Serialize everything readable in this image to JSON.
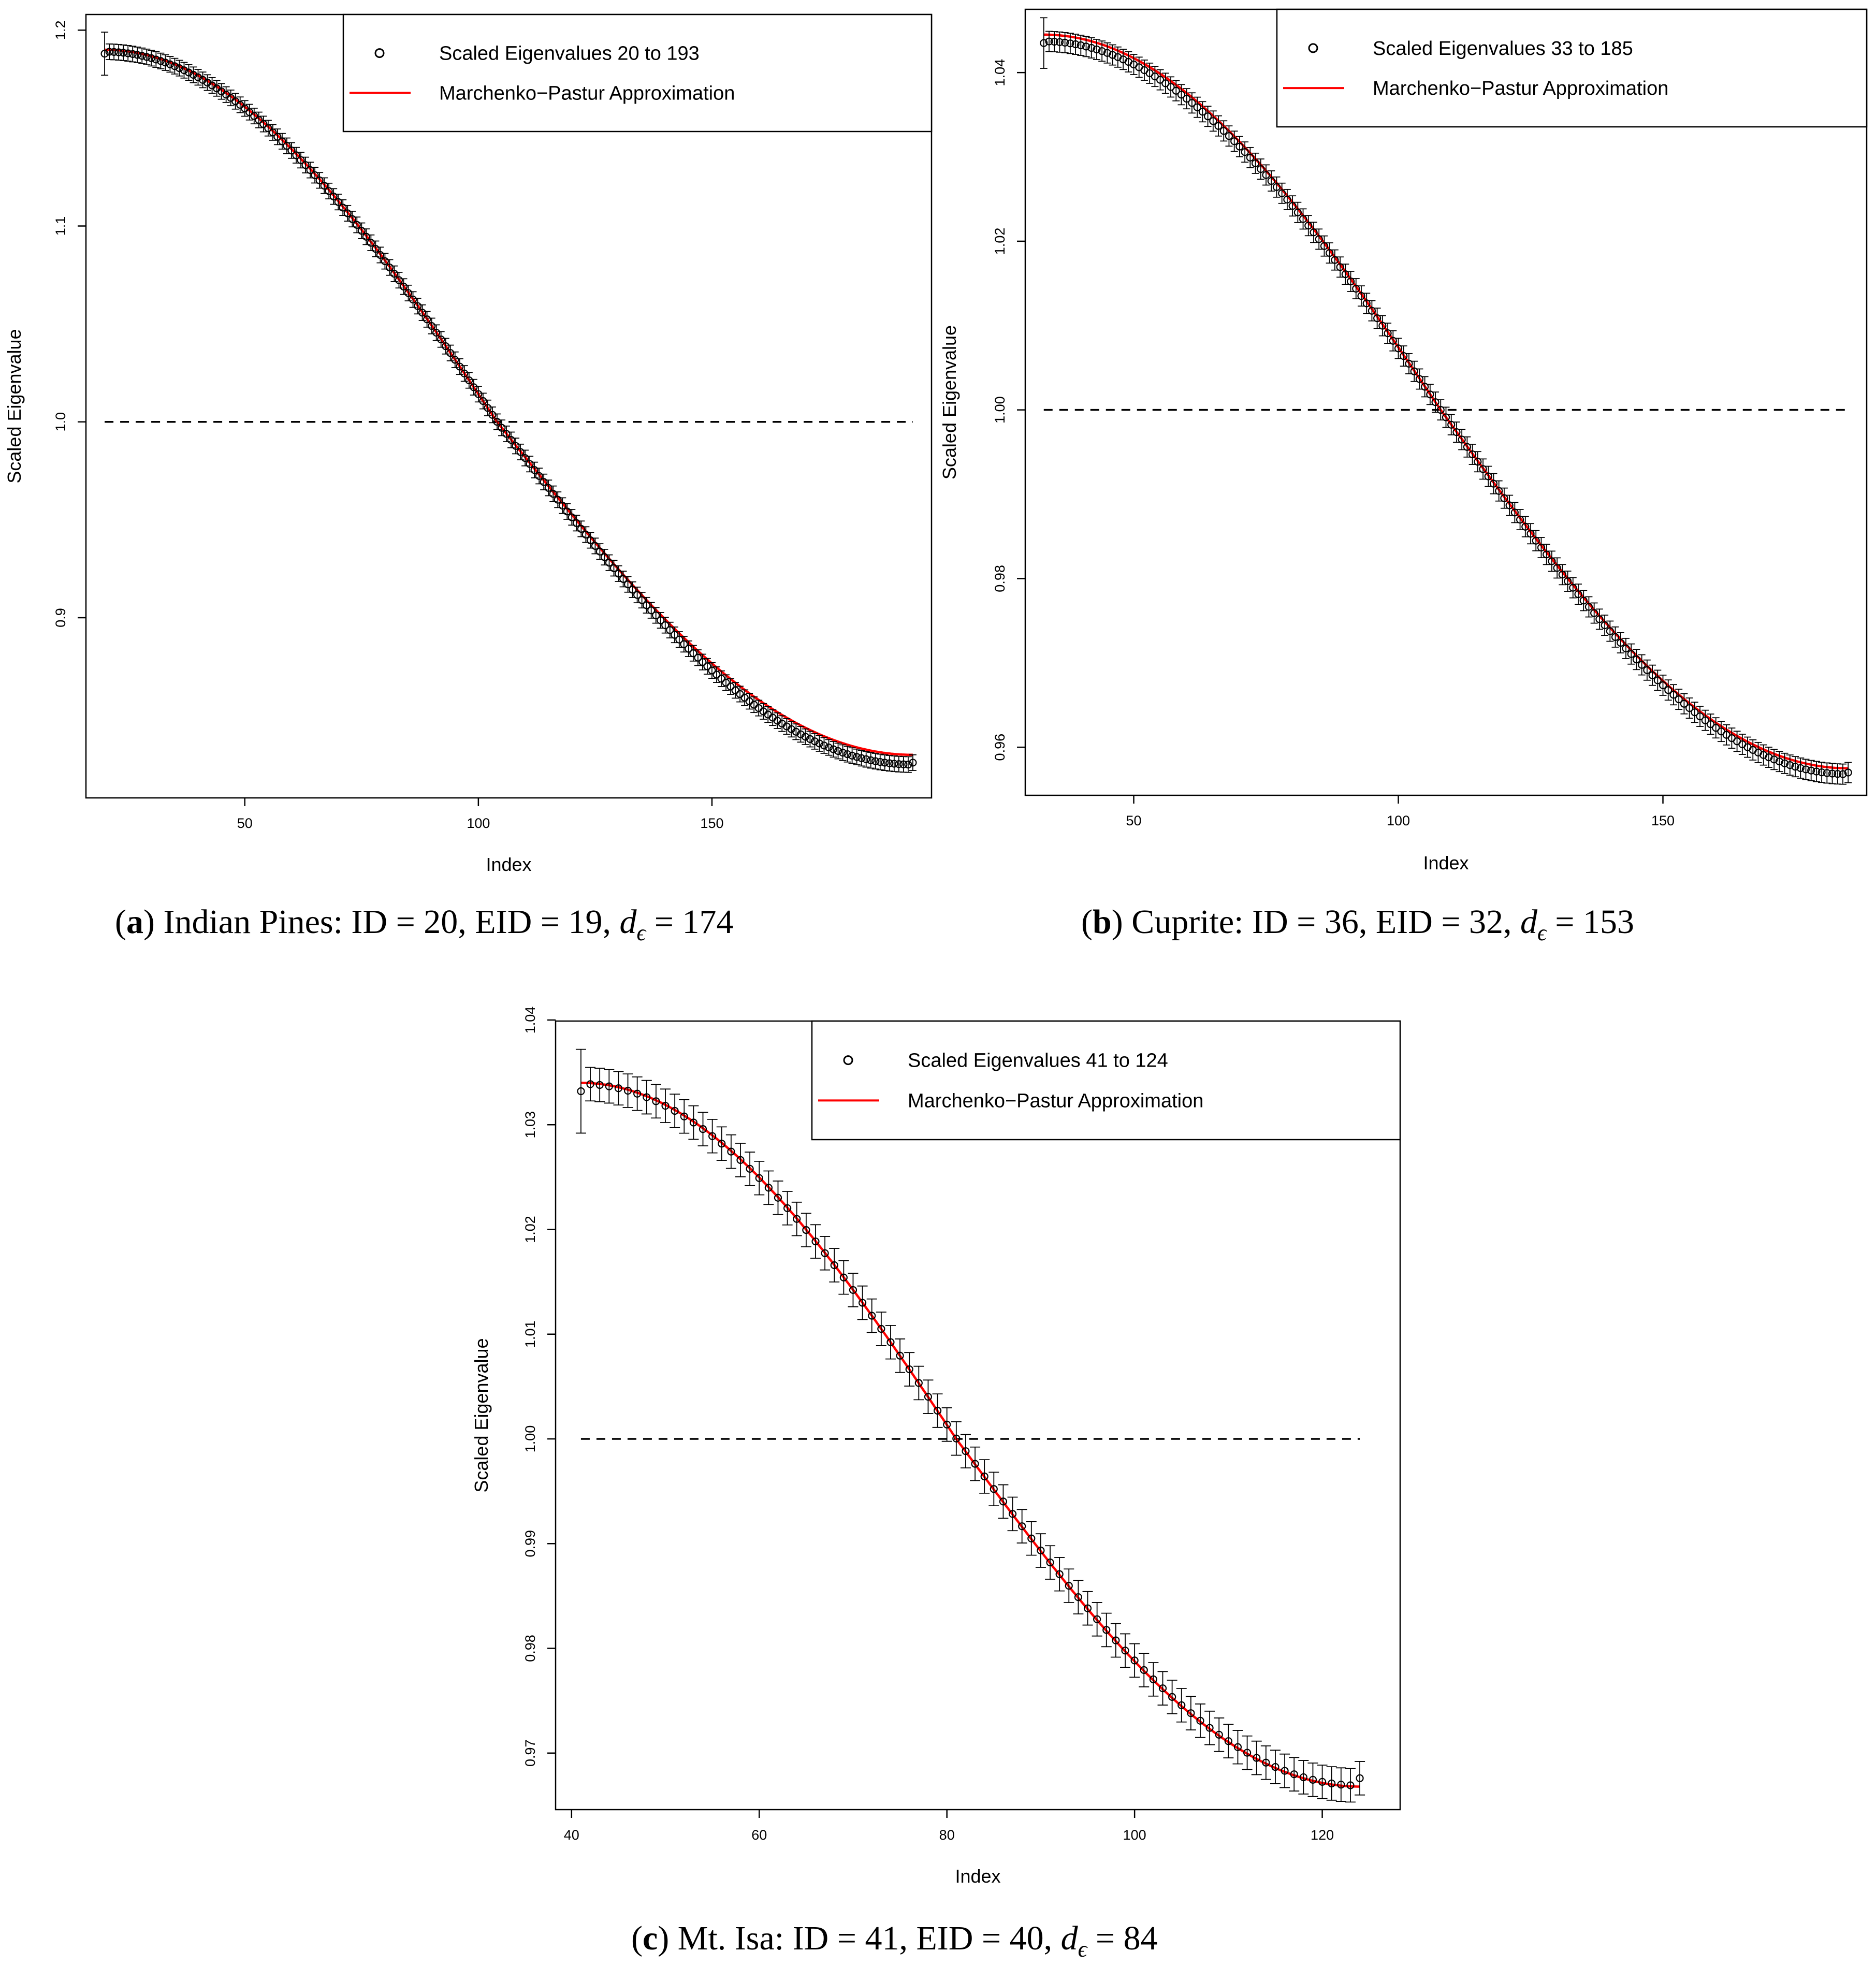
{
  "chart_data": [
    {
      "type": "scatter",
      "panel": "a",
      "xlabel": "Index",
      "ylabel": "Scaled Eigenvalue",
      "xlim": [
        16,
        197
      ],
      "ylim": [
        0.808,
        1.208
      ],
      "xticks": [
        50,
        100,
        150
      ],
      "xtick_labels": [
        "50",
        "100",
        "150"
      ],
      "yticks": [
        0.9,
        1.0,
        1.1,
        1.2
      ],
      "ytick_labels": [
        "0.9",
        "1.0",
        "1.1",
        "1.2"
      ],
      "reference_line": 1.0,
      "index_start": 20,
      "index_end": 193,
      "value_at_start": 1.188,
      "value_at_end": 0.826,
      "curve_start": 1.19,
      "curve_end": 0.83,
      "crossing_index": 104,
      "point_offset": 0.001,
      "error_bar": 0.004,
      "error_bar_first": 0.011,
      "legend": {
        "position": "top-right",
        "points_label": "Scaled Eigenvalues 20 to 193",
        "line_label": "Marchenko−Pastur Approximation"
      },
      "caption": {
        "letter": "a",
        "text": " Indian Pines: ID = 20, EID = 19, ",
        "d_symbol": "d",
        "subscript": "ϵ",
        "tail": " = 174"
      }
    },
    {
      "type": "scatter",
      "panel": "b",
      "xlabel": "Index",
      "ylabel": "Scaled Eigenvalue",
      "xlim": [
        29.5,
        188.5
      ],
      "ylim": [
        0.9543,
        1.0475
      ],
      "xticks": [
        50,
        100,
        150
      ],
      "xtick_labels": [
        "50",
        "100",
        "150"
      ],
      "yticks": [
        0.96,
        0.98,
        1.0,
        1.02,
        1.04
      ],
      "ytick_labels": [
        "0.96",
        "0.98",
        "1.00",
        "1.02",
        "1.04"
      ],
      "reference_line": 1.0,
      "index_start": 33,
      "index_end": 185,
      "value_at_start": 1.0435,
      "value_at_end": 0.957,
      "curve_start": 1.0445,
      "curve_end": 0.9575,
      "crossing_index": 108,
      "point_offset": 0.0002,
      "error_bar": 0.0012,
      "error_bar_first": 0.003,
      "legend": {
        "position": "top-right",
        "points_label": "Scaled Eigenvalues 33 to 185",
        "line_label": "Marchenko−Pastur Approximation"
      },
      "caption": {
        "letter": "b",
        "text": " Cuprite: ID = 36, EID = 32, ",
        "d_symbol": "d",
        "subscript": "ϵ",
        "tail": " = 153"
      }
    },
    {
      "type": "scatter",
      "panel": "c",
      "xlabel": "Index",
      "ylabel": "Scaled Eigenvalue",
      "xlim": [
        38.3,
        128.3
      ],
      "ylim": [
        0.9646,
        1.0399
      ],
      "xticks": [
        40,
        60,
        80,
        100,
        120
      ],
      "xtick_labels": [
        "40",
        "60",
        "80",
        "100",
        "120"
      ],
      "yticks": [
        0.97,
        0.98,
        0.99,
        1.0,
        1.01,
        1.02,
        1.03,
        1.04
      ],
      "ytick_labels": [
        "0.97",
        "0.98",
        "0.99",
        "1.00",
        "1.01",
        "1.02",
        "1.03",
        "1.04"
      ],
      "reference_line": 1.0,
      "index_start": 41,
      "index_end": 124,
      "value_at_start": 1.0332,
      "value_at_end": 0.9676,
      "curve_start": 1.034,
      "curve_end": 0.9668,
      "crossing_index": 81,
      "point_offset": 0.0007,
      "error_bar": 0.0016,
      "error_bar_first": 0.004,
      "legend": {
        "position": "top-right",
        "points_label": "Scaled Eigenvalues 41 to 124",
        "line_label": "Marchenko−Pastur Approximation"
      },
      "caption": {
        "letter": "c",
        "text": " Mt. Isa: ID = 41, EID = 40, ",
        "d_symbol": "d",
        "subscript": "ϵ",
        "tail": " = 84"
      }
    }
  ],
  "colors": {
    "points": "#000000",
    "error_bars": "#000000",
    "curve": "#ff0000",
    "reference_line": "#000000",
    "frame": "#000000"
  }
}
